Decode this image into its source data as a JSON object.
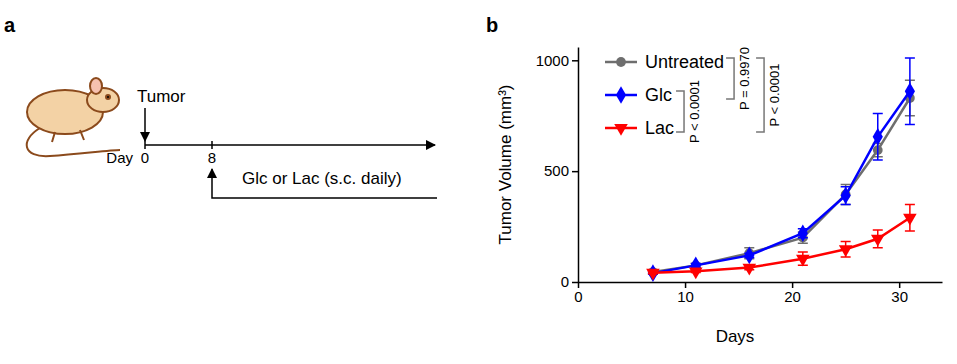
{
  "chart_data": [
    {
      "type": "timeline",
      "panel": "a",
      "event": "Tumor",
      "axis_label": "Day",
      "ticks": [
        0,
        8
      ],
      "treatment": "Glc or Lac (s.c. daily)"
    },
    {
      "type": "line",
      "panel": "b",
      "x_label": "Days",
      "y_label": "Tumor Volume (mm³)",
      "x": [
        7,
        11,
        16,
        21,
        25,
        28,
        31
      ],
      "xlim": [
        0,
        34
      ],
      "xticks": [
        0,
        10,
        20,
        30
      ],
      "ylim": [
        0,
        1060
      ],
      "yticks": [
        0,
        500,
        1000
      ],
      "legend": "top-left",
      "series": [
        {
          "name": "Untreated",
          "color": "#6e6e6e",
          "marker": "circle",
          "values": [
            45,
            75,
            130,
            200,
            395,
            595,
            830
          ],
          "errors": [
            5,
            8,
            25,
            25,
            45,
            30,
            80
          ]
        },
        {
          "name": "Glc",
          "color": "#0000ff",
          "marker": "diamond",
          "values": [
            40,
            75,
            120,
            220,
            390,
            655,
            860
          ],
          "errors": [
            5,
            8,
            10,
            20,
            40,
            105,
            150
          ]
        },
        {
          "name": "Lac",
          "color": "#ff0000",
          "marker": "triangle-down",
          "values": [
            42,
            48,
            65,
            105,
            148,
            195,
            290
          ],
          "errors": [
            5,
            5,
            10,
            30,
            35,
            40,
            60
          ]
        }
      ],
      "annotations": [
        {
          "text": "P < 0.0001",
          "between": [
            "Glc",
            "Lac"
          ]
        },
        {
          "text": "P = 0.9970",
          "between": [
            "Untreated",
            "Glc"
          ]
        },
        {
          "text": "P < 0.0001",
          "between": [
            "Untreated",
            "Lac"
          ]
        }
      ]
    }
  ]
}
